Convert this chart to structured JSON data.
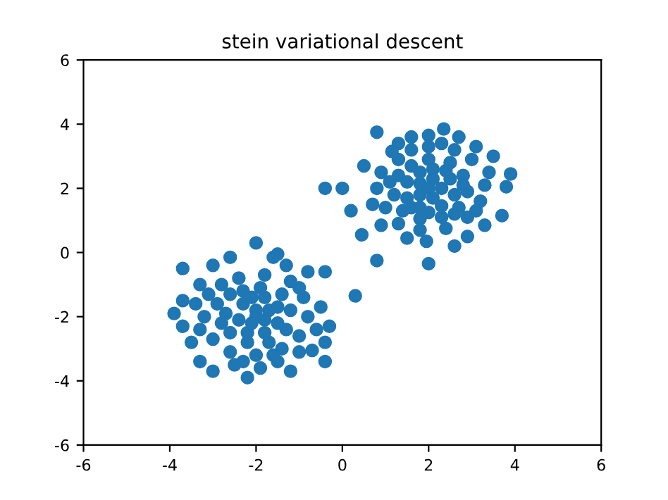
{
  "chart_data": {
    "type": "scatter",
    "title": "stein variational descent",
    "xlim": [
      -6,
      6
    ],
    "ylim": [
      -6,
      6
    ],
    "xticks": [
      -6,
      -4,
      -2,
      0,
      2,
      4,
      6
    ],
    "yticks": [
      -6,
      -4,
      -2,
      0,
      2,
      4,
      6
    ],
    "grid": false,
    "marker": "circle",
    "series": [
      {
        "color": "#1f77b4",
        "x": [
          0.8,
          1.6,
          2.35,
          2.7,
          3.1,
          3.5,
          3.9,
          3.8,
          3.7,
          3.3,
          2.9,
          2.6,
          2.0,
          1.5,
          0.8,
          0.9,
          0.45,
          0.2,
          0.0,
          -0.4,
          0.5,
          1.15,
          2.0,
          1.95,
          3.4,
          2.0,
          2.6,
          3.0,
          3.3,
          3.2,
          2.9,
          2.4,
          1.8,
          1.3,
          1.0,
          0.8,
          0.9,
          1.3,
          1.6,
          2.3,
          3.1,
          0.7,
          2.0,
          2.5,
          2.8,
          2.9,
          2.7,
          2.3,
          1.8,
          1.4,
          1.2,
          1.3,
          1.6,
          2.1,
          2.5,
          2.6,
          2.3,
          1.8,
          1.5,
          1.5,
          1.8,
          2.1,
          2.3,
          2.1,
          1.8,
          1.8,
          2.0,
          1.1,
          2.8,
          2.4,
          1.6,
          2.6,
          2.0,
          1.3,
          -3.7,
          -3.9,
          -3.7,
          -3.5,
          -3.3,
          -3.0,
          -2.5,
          -2.2,
          -1.9,
          -1.5,
          -1.2,
          -0.7,
          -0.4,
          -0.4,
          -0.3,
          -0.5,
          -0.4,
          -0.8,
          -1.3,
          -1.5,
          -2.0,
          -2.6,
          -3.0,
          -3.3,
          -3.7,
          0.3,
          -1.6,
          -3.1,
          -3.2,
          -3.0,
          -2.6,
          -2.0,
          -1.4,
          -1.0,
          -0.8,
          -0.9,
          -1.2,
          -1.8,
          -2.4,
          -2.8,
          -1.0,
          -2.9,
          -2.6,
          -2.7,
          -2.6,
          -2.2,
          -1.7,
          -1.3,
          -1.2,
          -1.4,
          -1.9,
          -2.3,
          -2.3,
          -2.4,
          -2.2,
          -1.8,
          -1.5,
          -1.5,
          -1.8,
          -2.1,
          -2.0,
          -1.8,
          -2.1,
          -1.7,
          -2.0,
          -3.3,
          -2.3,
          -0.6,
          -1.0,
          -3.4,
          -1.6,
          -2.8
        ],
        "values": [
          3.75,
          3.6,
          3.85,
          3.6,
          3.3,
          3.0,
          2.45,
          2.05,
          1.15,
          0.85,
          0.5,
          0.2,
          -0.35,
          0.45,
          -0.25,
          0.85,
          0.55,
          1.3,
          2.0,
          2.0,
          2.7,
          3.15,
          3.65,
          0.35,
          2.5,
          3.3,
          3.2,
          2.9,
          2.1,
          1.6,
          1.1,
          0.75,
          0.7,
          0.9,
          1.4,
          2.0,
          2.5,
          2.9,
          3.2,
          3.4,
          1.3,
          1.5,
          2.9,
          2.8,
          2.4,
          1.9,
          1.4,
          1.1,
          1.05,
          1.3,
          1.8,
          2.4,
          2.7,
          2.6,
          2.3,
          1.8,
          1.45,
          1.4,
          1.7,
          2.2,
          2.5,
          2.3,
          2.0,
          1.7,
          1.8,
          2.15,
          2.0,
          2.2,
          2.1,
          2.55,
          1.4,
          1.2,
          1.25,
          3.4,
          -0.5,
          -1.9,
          -2.3,
          -2.8,
          -3.4,
          -3.7,
          -3.5,
          -3.9,
          -3.6,
          -3.4,
          -3.7,
          -3.05,
          -3.4,
          -2.8,
          -2.3,
          -1.7,
          -0.6,
          -0.6,
          -0.4,
          -0.05,
          0.3,
          -0.15,
          -0.4,
          -1.0,
          -1.5,
          -1.35,
          -0.15,
          -1.3,
          -2.0,
          -2.7,
          -3.1,
          -3.2,
          -3.0,
          -2.6,
          -2.0,
          -1.4,
          -0.9,
          -0.7,
          -0.8,
          -1.0,
          -3.1,
          -1.6,
          -1.3,
          -1.9,
          -2.5,
          -2.8,
          -2.8,
          -2.4,
          -1.8,
          -1.3,
          -1.1,
          -1.2,
          -1.6,
          -2.1,
          -2.5,
          -2.5,
          -2.2,
          -1.7,
          -1.4,
          -1.4,
          -1.8,
          -2.1,
          -2.2,
          -1.8,
          -2.0,
          -2.4,
          -3.4,
          -2.4,
          -1.1,
          -1.6,
          -3.2,
          -2.2
        ]
      }
    ]
  }
}
